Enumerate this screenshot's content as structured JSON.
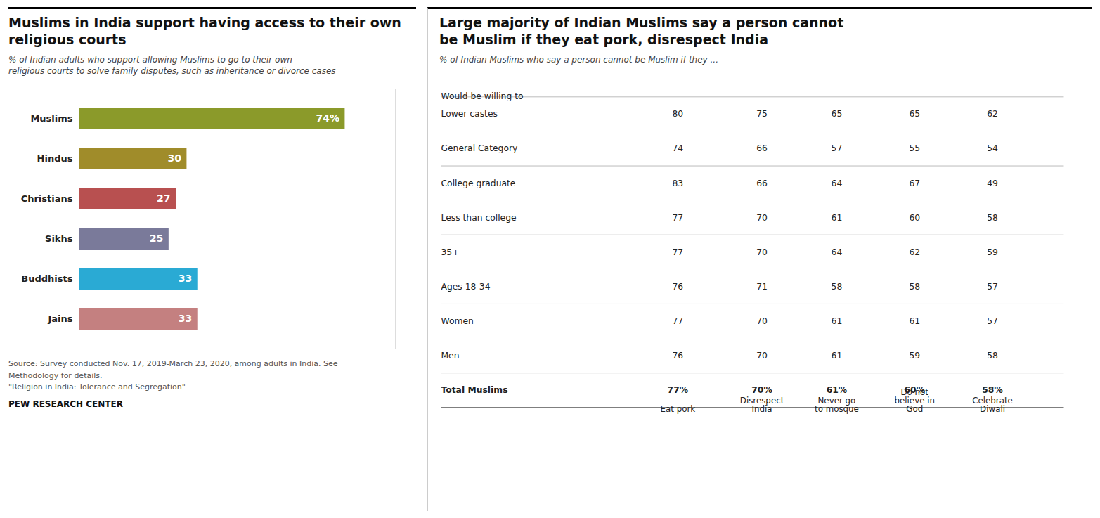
{
  "chart_data": [
    {
      "type": "bar",
      "title": "Muslims in India support having access to their own\nreligious courts",
      "subtitle": "% of Indian adults who support allowing Muslims to go to their own\nreligious courts to solve family disputes, such as inheritance or divorce cases",
      "categories": [
        "Muslims",
        "Hindus",
        "Christians",
        "Sikhs",
        "Buddhists",
        "Jains"
      ],
      "values": [
        74,
        30,
        27,
        25,
        33,
        33
      ],
      "value_labels": [
        "74%",
        "30",
        "27",
        "25",
        "33",
        "33"
      ],
      "colors": [
        "#8b9a2a",
        "#a08c2a",
        "#b85050",
        "#7a7a9a",
        "#2aaad4",
        "#c48080"
      ],
      "orientation": "horizontal",
      "data_labels": true,
      "xlim": [
        0,
        88
      ],
      "tick_labels": "y",
      "grid": false,
      "annotations": [
        "Source: Survey conducted Nov. 17, 2019-March 23, 2020, among adults in India. See\nMethodology for details.\n\"Religion in India: Tolerance and Segregation\"",
        "PEW RESEARCH CENTER"
      ]
    },
    {
      "type": "table",
      "title": "Large majority of Indian Muslims say a person cannot\nbe Muslim if they eat pork, disrespect India",
      "subtitle": "% of Indian Muslims who say a person cannot be Muslim if they ...",
      "categories": [
        "Total Muslims",
        "Men",
        "Women",
        "Ages 18-34",
        "35+",
        "Less than college",
        "College graduate",
        "General Category",
        "Lower castes"
      ],
      "series": [
        {
          "name": "Eat pork",
          "values": [
            77,
            76,
            77,
            76,
            77,
            77,
            83,
            74,
            80
          ],
          "value_labels": [
            "77%",
            "76",
            "77",
            "76",
            "77",
            "77",
            "83",
            "74",
            "80"
          ]
        },
        {
          "name": "Disrespect\nIndia",
          "values": [
            70,
            70,
            70,
            71,
            70,
            70,
            66,
            66,
            75
          ],
          "value_labels": [
            "70%",
            "70",
            "70",
            "71",
            "70",
            "70",
            "66",
            "66",
            "75"
          ]
        },
        {
          "name": "Never go\nto mosque",
          "values": [
            61,
            61,
            61,
            58,
            64,
            61,
            64,
            57,
            65
          ],
          "value_labels": [
            "61%",
            "61",
            "61",
            "58",
            "64",
            "61",
            "64",
            "57",
            "65"
          ]
        },
        {
          "name": "Do not\nbelieve in\nGod",
          "values": [
            60,
            59,
            61,
            58,
            62,
            60,
            67,
            55,
            65
          ],
          "value_labels": [
            "60%",
            "59",
            "61",
            "58",
            "62",
            "60",
            "67",
            "55",
            "65"
          ]
        },
        {
          "name": "Celebrate\nDiwali",
          "values": [
            58,
            58,
            57,
            57,
            59,
            58,
            49,
            54,
            62
          ],
          "value_labels": [
            "58%",
            "58",
            "57",
            "57",
            "59",
            "58",
            "49",
            "54",
            "62"
          ]
        }
      ],
      "data_labels": true,
      "annotations": [
        "Would be willing to"
      ]
    }
  ]
}
